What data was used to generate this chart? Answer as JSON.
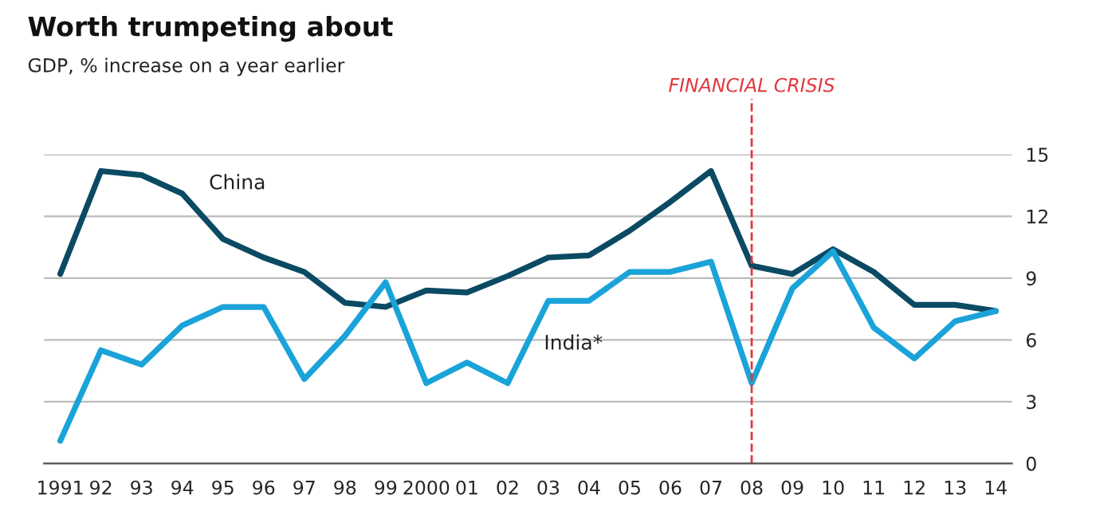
{
  "chart_data": {
    "type": "line",
    "title": "Worth trumpeting about",
    "subtitle": "GDP, % increase on a year earlier",
    "categories": [
      "1991",
      "92",
      "93",
      "94",
      "95",
      "96",
      "97",
      "98",
      "99",
      "2000",
      "01",
      "02",
      "03",
      "04",
      "05",
      "06",
      "07",
      "08",
      "09",
      "10",
      "11",
      "12",
      "13",
      "14"
    ],
    "series": [
      {
        "name": "China",
        "color": "#0b4a63",
        "values": [
          9.2,
          14.2,
          14.0,
          13.1,
          10.9,
          10.0,
          9.3,
          7.8,
          7.6,
          8.4,
          8.3,
          9.1,
          10.0,
          10.1,
          11.3,
          12.7,
          14.2,
          9.6,
          9.2,
          10.4,
          9.3,
          7.7,
          7.7,
          7.4
        ]
      },
      {
        "name": "India*",
        "color": "#1aa3d9",
        "values": [
          1.1,
          5.5,
          4.8,
          6.7,
          7.6,
          7.6,
          4.1,
          6.2,
          8.8,
          3.9,
          4.9,
          3.9,
          7.9,
          7.9,
          9.3,
          9.3,
          9.8,
          3.9,
          8.5,
          10.3,
          6.6,
          5.1,
          6.9,
          7.4
        ]
      }
    ],
    "ylim": [
      0,
      15
    ],
    "yticks": [
      0,
      3,
      6,
      9,
      12,
      15
    ],
    "grid": "y",
    "marker": "none",
    "line_style": "solid",
    "ref_lines": [
      {
        "axis": "x",
        "value": "08",
        "label": "FINANCIAL CRISIS",
        "color": "#e0383e",
        "line_style": "dashed"
      }
    ]
  }
}
